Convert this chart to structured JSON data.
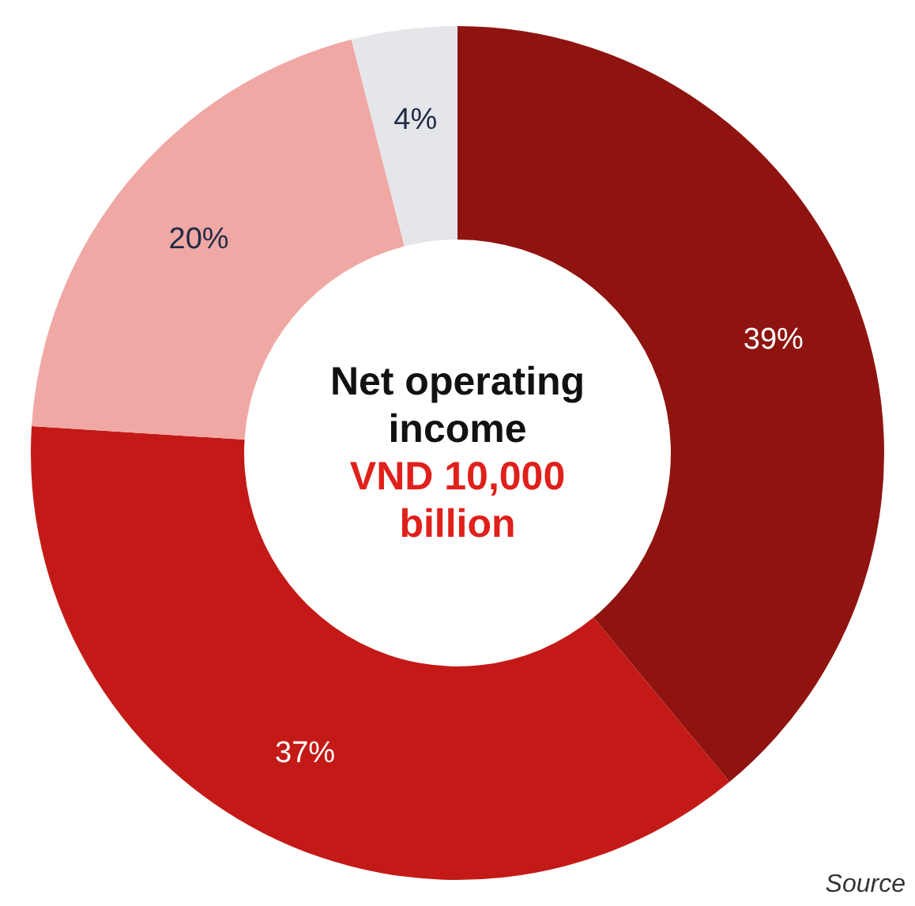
{
  "chart_data": {
    "type": "donut",
    "title": "Net operating income",
    "subtitle": "VND 10,000 billion",
    "categories": [
      null,
      null,
      null,
      null
    ],
    "values": [
      39,
      37,
      20,
      4
    ],
    "value_labels": [
      "39%",
      "37%",
      "20%",
      "4%"
    ],
    "colors": [
      "#8f1410",
      "#c41a17",
      "#f0a8a4",
      "#e4e6ea"
    ],
    "annotations": [
      "Source"
    ]
  }
}
